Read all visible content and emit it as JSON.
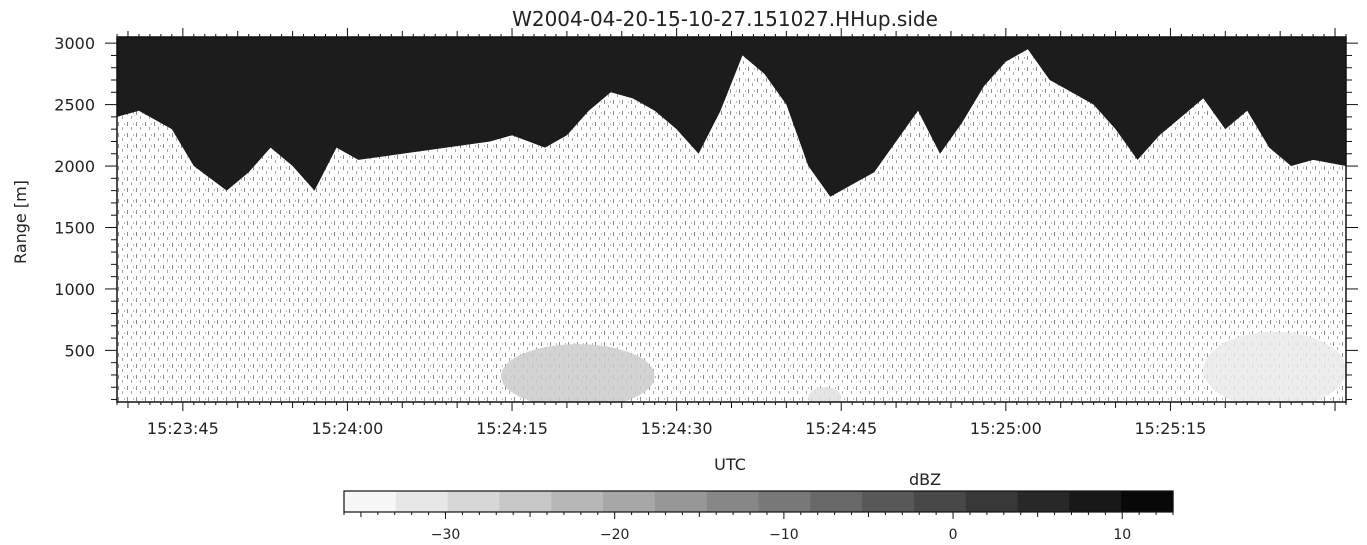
{
  "chart_data": [
    {
      "type": "heatmap",
      "title": "W2004-04-20-15-10-27.151027.HHup.side",
      "xlabel": "UTC",
      "ylabel": "Range [m]",
      "x_ticks": [
        "15:23:45",
        "15:24:00",
        "15:24:15",
        "15:24:30",
        "15:24:45",
        "15:25:00",
        "15:25:15"
      ],
      "x_tick_seconds": [
        825,
        840,
        855,
        870,
        885,
        900,
        915
      ],
      "xlim_seconds": [
        819,
        931
      ],
      "y_ticks": [
        500,
        1000,
        1500,
        2000,
        2500,
        3000
      ],
      "ylim": [
        80,
        3050
      ],
      "cloud_top_profile": {
        "x_seconds": [
          819,
          821,
          824,
          826,
          829,
          831,
          833,
          835,
          837,
          839,
          841,
          845,
          849,
          853,
          855,
          858,
          860,
          862,
          864,
          866,
          868,
          870,
          872,
          874,
          876,
          878,
          880,
          882,
          884,
          886,
          888,
          890,
          892,
          894,
          896,
          898,
          900,
          902,
          904,
          906,
          908,
          910,
          912,
          914,
          916,
          918,
          920,
          922,
          924,
          926,
          928,
          931
        ],
        "y_m": [
          2400,
          2450,
          2300,
          2000,
          1800,
          1950,
          2150,
          2000,
          1800,
          2150,
          2050,
          2100,
          2150,
          2200,
          2250,
          2150,
          2250,
          2450,
          2600,
          2550,
          2450,
          2300,
          2100,
          2450,
          2900,
          2750,
          2500,
          2000,
          1750,
          1850,
          1950,
          2200,
          2450,
          2100,
          2350,
          2650,
          2850,
          2950,
          2700,
          2600,
          2500,
          2300,
          2050,
          2250,
          2400,
          2550,
          2300,
          2450,
          2150,
          2000,
          2050,
          2000
        ]
      },
      "low_echo_patches": [
        {
          "x_seconds": [
            854,
            868
          ],
          "y_m": [
            80,
            600
          ],
          "level_dbz": -26
        },
        {
          "x_seconds": [
            882,
            885
          ],
          "y_m": [
            80,
            250
          ],
          "level_dbz": -30
        },
        {
          "x_seconds": [
            918,
            931
          ],
          "y_m": [
            80,
            700
          ],
          "level_dbz": -32
        }
      ]
    },
    {
      "type": "colorbar",
      "label": "dBZ",
      "ticks": [
        -30,
        -20,
        -10,
        0,
        10
      ],
      "range": [
        -36,
        13
      ],
      "levels": 16
    }
  ]
}
